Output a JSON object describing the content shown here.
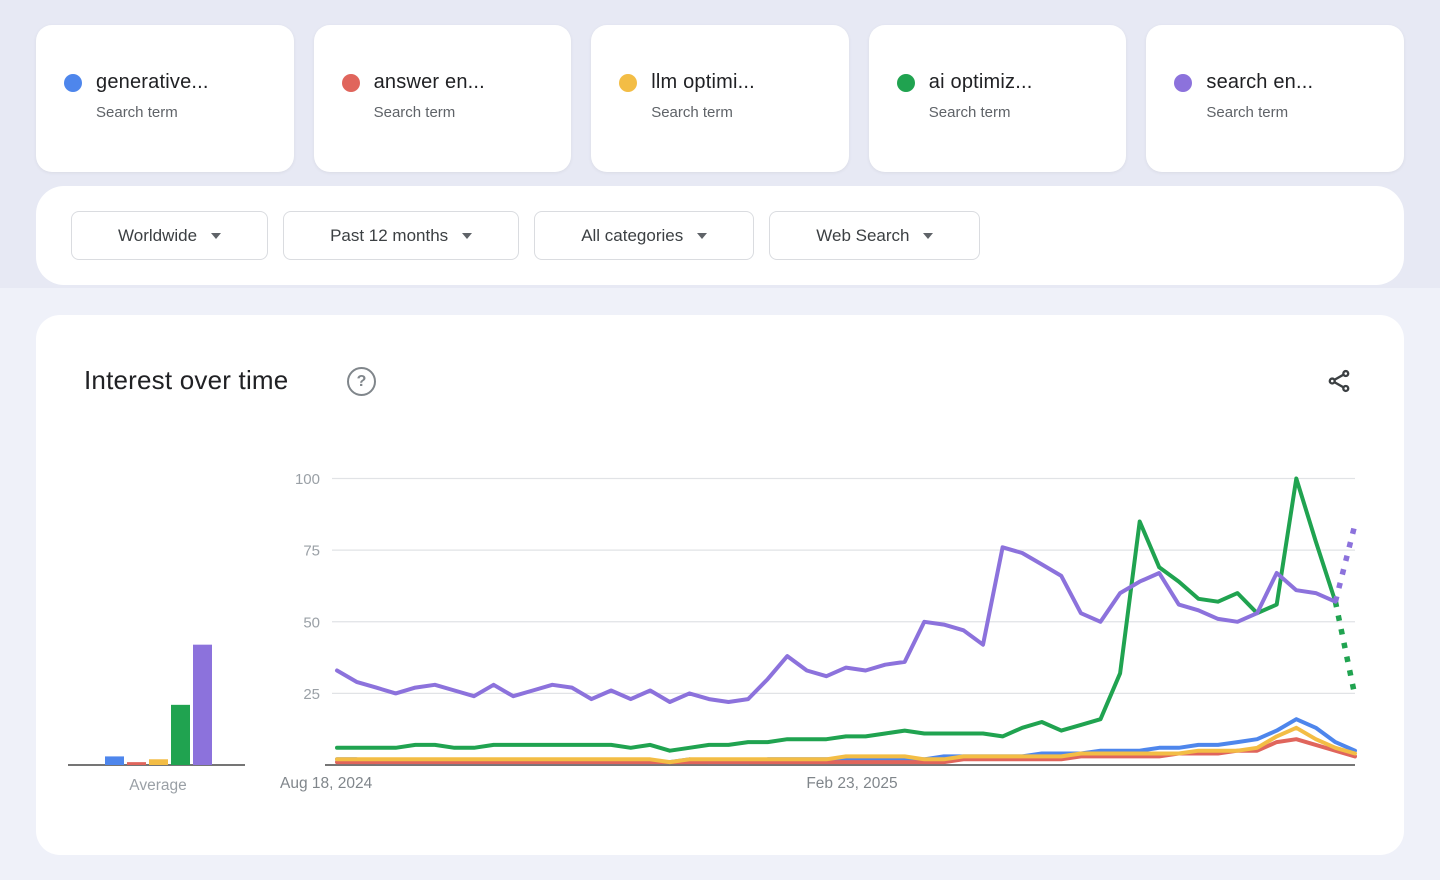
{
  "terms": [
    {
      "label": "generative...",
      "sublabel": "Search term",
      "color": "#4e86ec"
    },
    {
      "label": "answer en...",
      "sublabel": "Search term",
      "color": "#e0655c"
    },
    {
      "label": "llm optimi...",
      "sublabel": "Search term",
      "color": "#f3bd45"
    },
    {
      "label": "ai optimiz...",
      "sublabel": "Search term",
      "color": "#20a350"
    },
    {
      "label": "search en...",
      "sublabel": "Search term",
      "color": "#8c72dc"
    }
  ],
  "filters": [
    {
      "id": "geo",
      "label": "Worldwide"
    },
    {
      "id": "time",
      "label": "Past 12 months"
    },
    {
      "id": "category",
      "label": "All categories"
    },
    {
      "id": "property",
      "label": "Web Search"
    }
  ],
  "panel": {
    "title": "Interest over time",
    "help_glyph": "?"
  },
  "chart_data": {
    "type": "line",
    "title": "Interest over time",
    "ylim": [
      0,
      100
    ],
    "y_ticks": [
      25,
      50,
      75,
      100
    ],
    "x_tick_labels": [
      {
        "label": "Aug 18, 2024",
        "align": "start"
      },
      {
        "label": "Feb 23, 2025",
        "align": "center"
      }
    ],
    "grid": true,
    "legend_position": "none",
    "note": "last segment of green and purple series drawn dotted (partial data)",
    "series": [
      {
        "name": "generative...",
        "color": "#4e86ec",
        "dashed_tail": false,
        "values": [
          2,
          2,
          1,
          1,
          1,
          1,
          1,
          1,
          1,
          1,
          1,
          1,
          1,
          1,
          1,
          1,
          1,
          1,
          2,
          1,
          1,
          1,
          2,
          2,
          2,
          2,
          2,
          2,
          2,
          2,
          2,
          3,
          3,
          3,
          3,
          3,
          4,
          4,
          4,
          5,
          5,
          5,
          6,
          6,
          7,
          7,
          8,
          9,
          12,
          16,
          13,
          8,
          5
        ]
      },
      {
        "name": "answer en...",
        "color": "#e0655c",
        "dashed_tail": false,
        "values": [
          1,
          1,
          1,
          1,
          1,
          1,
          1,
          1,
          1,
          1,
          1,
          1,
          1,
          1,
          1,
          1,
          1,
          1,
          1,
          1,
          1,
          1,
          1,
          1,
          1,
          1,
          1,
          1,
          1,
          1,
          1,
          1,
          2,
          2,
          2,
          2,
          2,
          2,
          3,
          3,
          3,
          3,
          3,
          4,
          4,
          4,
          5,
          5,
          8,
          9,
          7,
          5,
          3
        ]
      },
      {
        "name": "llm optimi...",
        "color": "#f3bd45",
        "dashed_tail": false,
        "values": [
          2,
          2,
          2,
          2,
          2,
          2,
          2,
          2,
          2,
          2,
          2,
          2,
          2,
          2,
          2,
          2,
          2,
          1,
          2,
          2,
          2,
          2,
          2,
          2,
          2,
          2,
          3,
          3,
          3,
          3,
          2,
          2,
          3,
          3,
          3,
          3,
          3,
          3,
          4,
          4,
          4,
          4,
          4,
          4,
          5,
          5,
          5,
          6,
          10,
          13,
          9,
          6,
          4
        ]
      },
      {
        "name": "ai optimiz...",
        "color": "#20a350",
        "dashed_tail": true,
        "values": [
          6,
          6,
          6,
          6,
          7,
          7,
          6,
          6,
          7,
          7,
          7,
          7,
          7,
          7,
          7,
          6,
          7,
          5,
          6,
          7,
          7,
          8,
          8,
          9,
          9,
          9,
          10,
          10,
          11,
          12,
          11,
          11,
          11,
          11,
          10,
          13,
          15,
          12,
          14,
          16,
          32,
          85,
          69,
          64,
          58,
          57,
          60,
          53,
          56,
          100,
          78,
          57,
          24
        ]
      },
      {
        "name": "search en...",
        "color": "#8c72dc",
        "dashed_tail": true,
        "values": [
          33,
          29,
          27,
          25,
          27,
          28,
          26,
          24,
          28,
          24,
          26,
          28,
          27,
          23,
          26,
          23,
          26,
          22,
          25,
          23,
          22,
          23,
          30,
          38,
          33,
          31,
          34,
          33,
          35,
          36,
          50,
          49,
          47,
          42,
          76,
          74,
          70,
          66,
          53,
          50,
          60,
          64,
          67,
          56,
          54,
          51,
          50,
          53,
          67,
          61,
          60,
          57,
          84
        ]
      }
    ],
    "average": {
      "label": "Average",
      "values": [
        3,
        1,
        2,
        21,
        42
      ]
    }
  }
}
